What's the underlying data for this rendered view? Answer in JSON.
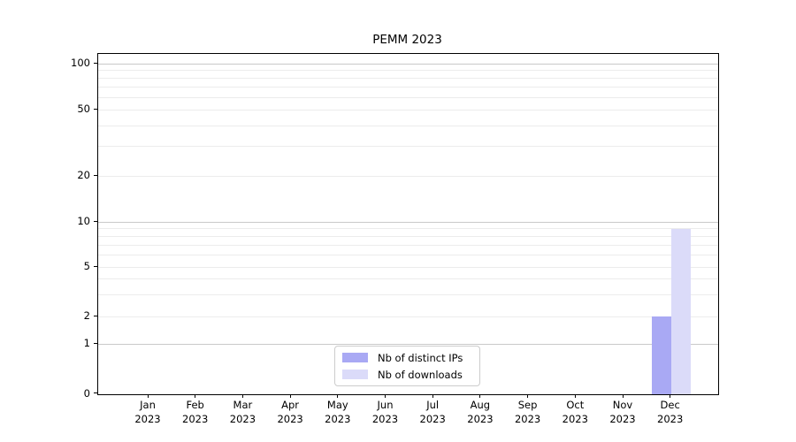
{
  "chart_data": {
    "type": "bar",
    "title": "PEMM 2023",
    "x": {
      "months": [
        "Jan",
        "Feb",
        "Mar",
        "Apr",
        "May",
        "Jun",
        "Jul",
        "Aug",
        "Sep",
        "Oct",
        "Nov",
        "Dec"
      ],
      "year": "2023"
    },
    "categories": [
      "Jan 2023",
      "Feb 2023",
      "Mar 2023",
      "Apr 2023",
      "May 2023",
      "Jun 2023",
      "Jul 2023",
      "Aug 2023",
      "Sep 2023",
      "Oct 2023",
      "Nov 2023",
      "Dec 2023"
    ],
    "series": [
      {
        "name": "Nb of distinct IPs",
        "color": "#a9a9f4",
        "values": [
          0,
          0,
          0,
          0,
          0,
          0,
          0,
          0,
          0,
          0,
          0,
          2
        ]
      },
      {
        "name": "Nb of downloads",
        "color": "#dbdbf9",
        "values": [
          0,
          0,
          0,
          0,
          0,
          0,
          0,
          0,
          0,
          0,
          0,
          9
        ]
      }
    ],
    "y_axis": {
      "scale": "asinh",
      "ticks": [
        0,
        1,
        2,
        5,
        10,
        20,
        50,
        100
      ],
      "major_gridlines": [
        1,
        10,
        100
      ],
      "minor_gridlines": [
        2,
        3,
        4,
        5,
        6,
        7,
        8,
        9,
        20,
        30,
        40,
        50,
        60,
        70,
        80,
        90
      ],
      "ylim": [
        0,
        115
      ]
    },
    "grid": "horizontal",
    "legend": {
      "position": "lower-center"
    }
  },
  "colors": {
    "bar_distinct_ips": "#a9a9f4",
    "bar_downloads": "#dbdbf9",
    "grid_major": "#c9c9c9",
    "grid_minor": "#ececec",
    "axis_frame": "#000000",
    "legend_border": "#cccccc",
    "background": "#ffffff"
  }
}
